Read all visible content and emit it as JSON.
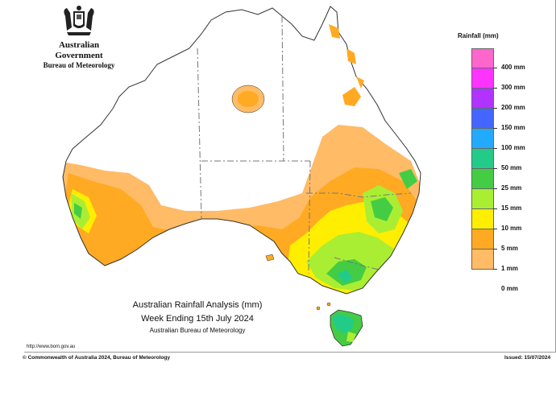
{
  "header": {
    "agency": "Australian Government",
    "bureau": "Bureau of Meteorology"
  },
  "legend": {
    "title": "Rainfall (mm)",
    "items": [
      {
        "label": "400 mm",
        "color": "#ff66cc"
      },
      {
        "label": "300 mm",
        "color": "#ff33ff"
      },
      {
        "label": "200 mm",
        "color": "#b033ff"
      },
      {
        "label": "150 mm",
        "color": "#4466ff"
      },
      {
        "label": "100 mm",
        "color": "#22aaff"
      },
      {
        "label": "50 mm",
        "color": "#22cc88"
      },
      {
        "label": "25 mm",
        "color": "#44cc44"
      },
      {
        "label": "15 mm",
        "color": "#aaee33"
      },
      {
        "label": "10 mm",
        "color": "#ffee00"
      },
      {
        "label": "5 mm",
        "color": "#ffaa22"
      },
      {
        "label": "1 mm",
        "color": "#ffbb66"
      },
      {
        "label": "0 mm",
        "color": "#ffffff"
      }
    ]
  },
  "caption": {
    "line1": "Australian Rainfall Analysis (mm)",
    "line2": "Week Ending 15th July 2024",
    "line3": "Australian Bureau of Meteorology"
  },
  "footer": {
    "url": "http://www.bom.gov.au",
    "copyright": "© Commonwealth of Australia 2024, Bureau of Meteorology",
    "issued": "Issued: 15/07/2024"
  },
  "colors": {
    "land_dry": "#ffffff",
    "rain_1mm": "#ffbb66",
    "rain_5mm": "#ffaa22",
    "rain_10mm": "#ffee00",
    "rain_15mm": "#aaee33",
    "rain_25mm": "#44cc44",
    "rain_50mm": "#22cc88",
    "rain_100mm": "#22aaff",
    "coast": "#333333",
    "borders": "#777777"
  }
}
